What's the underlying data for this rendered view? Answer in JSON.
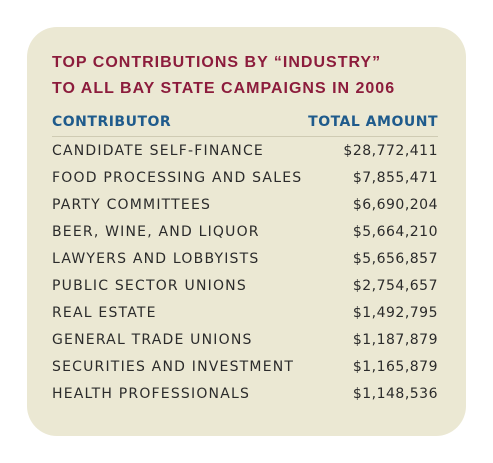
{
  "title_lines": [
    "TOP CONTRIBUTIONS BY “INDUSTRY”",
    "TO ALL BAY STATE CAMPAIGNS IN 2006"
  ],
  "table": {
    "headers": [
      "CONTRIBUTOR",
      "TOTAL AMOUNT"
    ],
    "rows": [
      [
        "CANDIDATE SELF-FINANCE",
        "$28,772,411"
      ],
      [
        "FOOD PROCESSING AND SALES",
        "$7,855,471"
      ],
      [
        "PARTY COMMITTEES",
        "$6,690,204"
      ],
      [
        "BEER, WINE, AND LIQUOR",
        "$5,664,210"
      ],
      [
        "LAWYERS AND LOBBYISTS",
        "$5,656,857"
      ],
      [
        "PUBLIC SECTOR UNIONS",
        "$2,754,657"
      ],
      [
        "REAL ESTATE",
        "$1,492,795"
      ],
      [
        "GENERAL TRADE UNIONS",
        "$1,187,879"
      ],
      [
        "SECURITIES AND INVESTMENT",
        "$1,165,879"
      ],
      [
        "HEALTH PROFESSIONALS",
        "$1,148,536"
      ]
    ]
  }
}
